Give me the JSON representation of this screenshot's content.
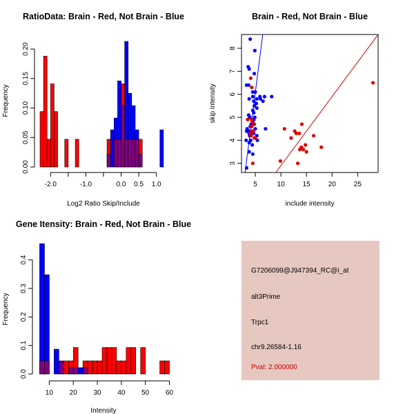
{
  "chart_data": [
    {
      "type": "bar",
      "title": "RatioData: Brain - Red, Not Brain - Blue",
      "xlabel": "Log2 Ratio Skip/Include",
      "ylabel": "Frequency",
      "xlim": [
        -2.3,
        1.3
      ],
      "ylim": [
        0,
        0.22
      ],
      "xticks": [
        -2.0,
        -1.5,
        -1.0,
        -0.5,
        0.0,
        0.5,
        1.0
      ],
      "xtick_labels": [
        "-2.0",
        "",
        "-1.0",
        "",
        "0.0",
        "0.5",
        "1.0"
      ],
      "yticks": [
        0.0,
        0.05,
        0.1,
        0.15,
        0.2
      ],
      "ytick_labels": [
        "0.00",
        "0.05",
        "0.10",
        "0.15",
        "0.20"
      ],
      "series": [
        {
          "name": "Not Brain",
          "color": "#0000ff",
          "bins": [
            [
              -0.4,
              -0.3,
              0.021
            ],
            [
              -0.3,
              -0.2,
              0.063
            ],
            [
              -0.2,
              -0.1,
              0.083
            ],
            [
              -0.1,
              0.0,
              0.146
            ],
            [
              0.0,
              0.1,
              0.104
            ],
            [
              0.1,
              0.2,
              0.213
            ],
            [
              0.2,
              0.3,
              0.125
            ],
            [
              0.3,
              0.4,
              0.104
            ],
            [
              0.4,
              0.5,
              0.063
            ],
            [
              0.5,
              0.6,
              0.021
            ],
            [
              0.6,
              0.7,
              0.0
            ],
            [
              0.7,
              0.8,
              0.0
            ],
            [
              0.8,
              0.9,
              0.0
            ],
            [
              0.9,
              1.0,
              0.0
            ],
            [
              1.0,
              1.1,
              0.0
            ],
            [
              1.1,
              1.2,
              0.063
            ]
          ]
        },
        {
          "name": "Brain",
          "color": "#ff0000",
          "bins": [
            [
              -2.3,
              -2.2,
              0.094
            ],
            [
              -2.2,
              -2.1,
              0.188
            ],
            [
              -2.1,
              -2.0,
              0.047
            ],
            [
              -2.0,
              -1.9,
              0.141
            ],
            [
              -1.9,
              -1.8,
              0.094
            ],
            [
              -1.6,
              -1.5,
              0.047
            ],
            [
              -1.3,
              -1.2,
              0.047
            ],
            [
              -0.4,
              -0.3,
              0.047
            ],
            [
              -0.2,
              -0.1,
              0.047
            ],
            [
              -0.1,
              0.0,
              0.047
            ],
            [
              0.0,
              0.1,
              0.141
            ],
            [
              0.1,
              0.2,
              0.047
            ],
            [
              0.2,
              0.3,
              0.047
            ],
            [
              0.3,
              0.4,
              0.047
            ],
            [
              0.4,
              0.5,
              0.047
            ],
            [
              0.5,
              0.6,
              0.047
            ]
          ]
        }
      ]
    },
    {
      "type": "scatter",
      "title": "Brain - Red, Not Brain - Blue",
      "xlabel": "include intensity",
      "ylabel": "skip intensity",
      "xlim": [
        2.3,
        29.0
      ],
      "ylim": [
        2.6,
        8.6
      ],
      "xticks": [
        5,
        10,
        15,
        20,
        25
      ],
      "xtick_labels": [
        "5",
        "10",
        "15",
        "20",
        "25"
      ],
      "yticks": [
        3,
        4,
        5,
        6,
        7,
        8
      ],
      "ytick_labels": [
        "3",
        "4",
        "5",
        "6",
        "7",
        "8"
      ],
      "fit_lines": [
        {
          "name": "Not Brain fit",
          "color": "#0000ff",
          "x": [
            3.0,
            6.45
          ],
          "y": [
            2.6,
            8.6
          ]
        },
        {
          "name": "Brain fit",
          "color": "#cc0000",
          "x": [
            9.0,
            29.0
          ],
          "y": [
            2.6,
            8.6
          ]
        }
      ],
      "series": [
        {
          "name": "Not Brain",
          "color": "#0000ff",
          "x": [
            4.0,
            3.6,
            3.8,
            4.9,
            4.8,
            3.3,
            3.7,
            4.5,
            4.5,
            5.0,
            3.8,
            4.7,
            5.3,
            6.0,
            5.9,
            6.5,
            6.8,
            8.2,
            4.8,
            5.2,
            5.3,
            4.5,
            4.7,
            4.9,
            3.7,
            3.9,
            4.5,
            4.7,
            4.5,
            4.0,
            4.2,
            5.0,
            5.3,
            4.7,
            3.7,
            3.8,
            3.4,
            3.3,
            3.9,
            4.1,
            3.8,
            4.4,
            5.4,
            7.0,
            4.5,
            3.2,
            3.8,
            3.3
          ],
          "y": [
            8.4,
            7.2,
            7.1,
            7.9,
            6.9,
            6.4,
            6.4,
            6.1,
            5.9,
            6.1,
            5.8,
            5.7,
            5.8,
            5.8,
            5.9,
            5.7,
            5.9,
            5.9,
            5.5,
            5.6,
            5.4,
            5.3,
            5.2,
            5.0,
            5.1,
            5.0,
            4.9,
            4.9,
            4.8,
            4.6,
            4.7,
            4.5,
            4.2,
            4.3,
            4.4,
            4.3,
            4.5,
            4.4,
            4.2,
            4.0,
            3.9,
            3.8,
            4.0,
            4.5,
            3.4,
            4.0,
            3.5,
            2.8
          ]
        },
        {
          "name": "Brain",
          "color": "#dd0000",
          "x": [
            4.1,
            4.3,
            3.5,
            4.4,
            4.8,
            4.1,
            4.3,
            9.9,
            10.7,
            12.0,
            13.0,
            14.1,
            13.6,
            14.8,
            16.4,
            17.9,
            13.7,
            14.0,
            14.4,
            15.0,
            12.7,
            13.3,
            28.0,
            4.5,
            4.0,
            5.0,
            4.6,
            4.3,
            4.8,
            4.3,
            4.2,
            4.6
          ],
          "y": [
            6.7,
            6.3,
            4.9,
            4.8,
            4.7,
            4.6,
            4.4,
            3.1,
            4.5,
            4.1,
            4.3,
            4.7,
            4.3,
            3.8,
            4.2,
            3.7,
            3.6,
            3.7,
            3.6,
            3.5,
            4.4,
            3.0,
            6.5,
            3.0,
            4.3,
            4.1,
            4.4,
            4.6,
            4.1,
            4.9,
            4.2,
            4.4
          ]
        }
      ]
    },
    {
      "type": "bar",
      "title": "Gene Itensity: Brain - Red, Not Brain - Blue",
      "xlabel": "Intensity",
      "ylabel": "Frequency",
      "xlim": [
        5,
        61
      ],
      "ylim": [
        0,
        0.45
      ],
      "xticks": [
        10,
        20,
        30,
        40,
        50,
        60
      ],
      "xtick_labels": [
        "10",
        "20",
        "30",
        "40",
        "50",
        "60"
      ],
      "yticks": [
        0.0,
        0.1,
        0.2,
        0.3,
        0.4
      ],
      "ytick_labels": [
        "0.0",
        "0.1",
        "0.2",
        "0.3",
        "0.4"
      ],
      "series": [
        {
          "name": "Not Brain",
          "color": "#0000ff",
          "bins": [
            [
              6,
              8,
              0.457
            ],
            [
              8,
              10,
              0.348
            ],
            [
              10,
              12,
              0.0
            ],
            [
              12,
              14,
              0.087
            ],
            [
              14,
              16,
              0.043
            ],
            [
              16,
              18,
              0.0
            ],
            [
              18,
              20,
              0.022
            ],
            [
              20,
              22,
              0.022
            ],
            [
              22,
              24,
              0.022
            ],
            [
              24,
              26,
              0.022
            ]
          ]
        },
        {
          "name": "Brain",
          "color": "#ff0000",
          "bins": [
            [
              6,
              8,
              0.046
            ],
            [
              8,
              10,
              0.046
            ],
            [
              14,
              16,
              0.046
            ],
            [
              16,
              18,
              0.046
            ],
            [
              18,
              20,
              0.046
            ],
            [
              20,
              22,
              0.093
            ],
            [
              24,
              26,
              0.046
            ],
            [
              26,
              28,
              0.046
            ],
            [
              28,
              30,
              0.046
            ],
            [
              30,
              32,
              0.046
            ],
            [
              32,
              34,
              0.093
            ],
            [
              34,
              36,
              0.093
            ],
            [
              36,
              38,
              0.093
            ],
            [
              38,
              40,
              0.046
            ],
            [
              40,
              42,
              0.046
            ],
            [
              42,
              44,
              0.093
            ],
            [
              44,
              46,
              0.093
            ],
            [
              48,
              50,
              0.093
            ],
            [
              56,
              58,
              0.046
            ],
            [
              58,
              60,
              0.046
            ]
          ]
        }
      ]
    }
  ],
  "info_panel": {
    "probe": "G7206099@J947394_RC@i_at",
    "event": "alt3Prime",
    "gene": "Trpc1",
    "location": "chr9.26584-1.16",
    "pval": "Pval: 2.000000",
    "background_color": "#e6c8c0",
    "pval_color": "#c00000"
  },
  "overlap_color": "#800080"
}
